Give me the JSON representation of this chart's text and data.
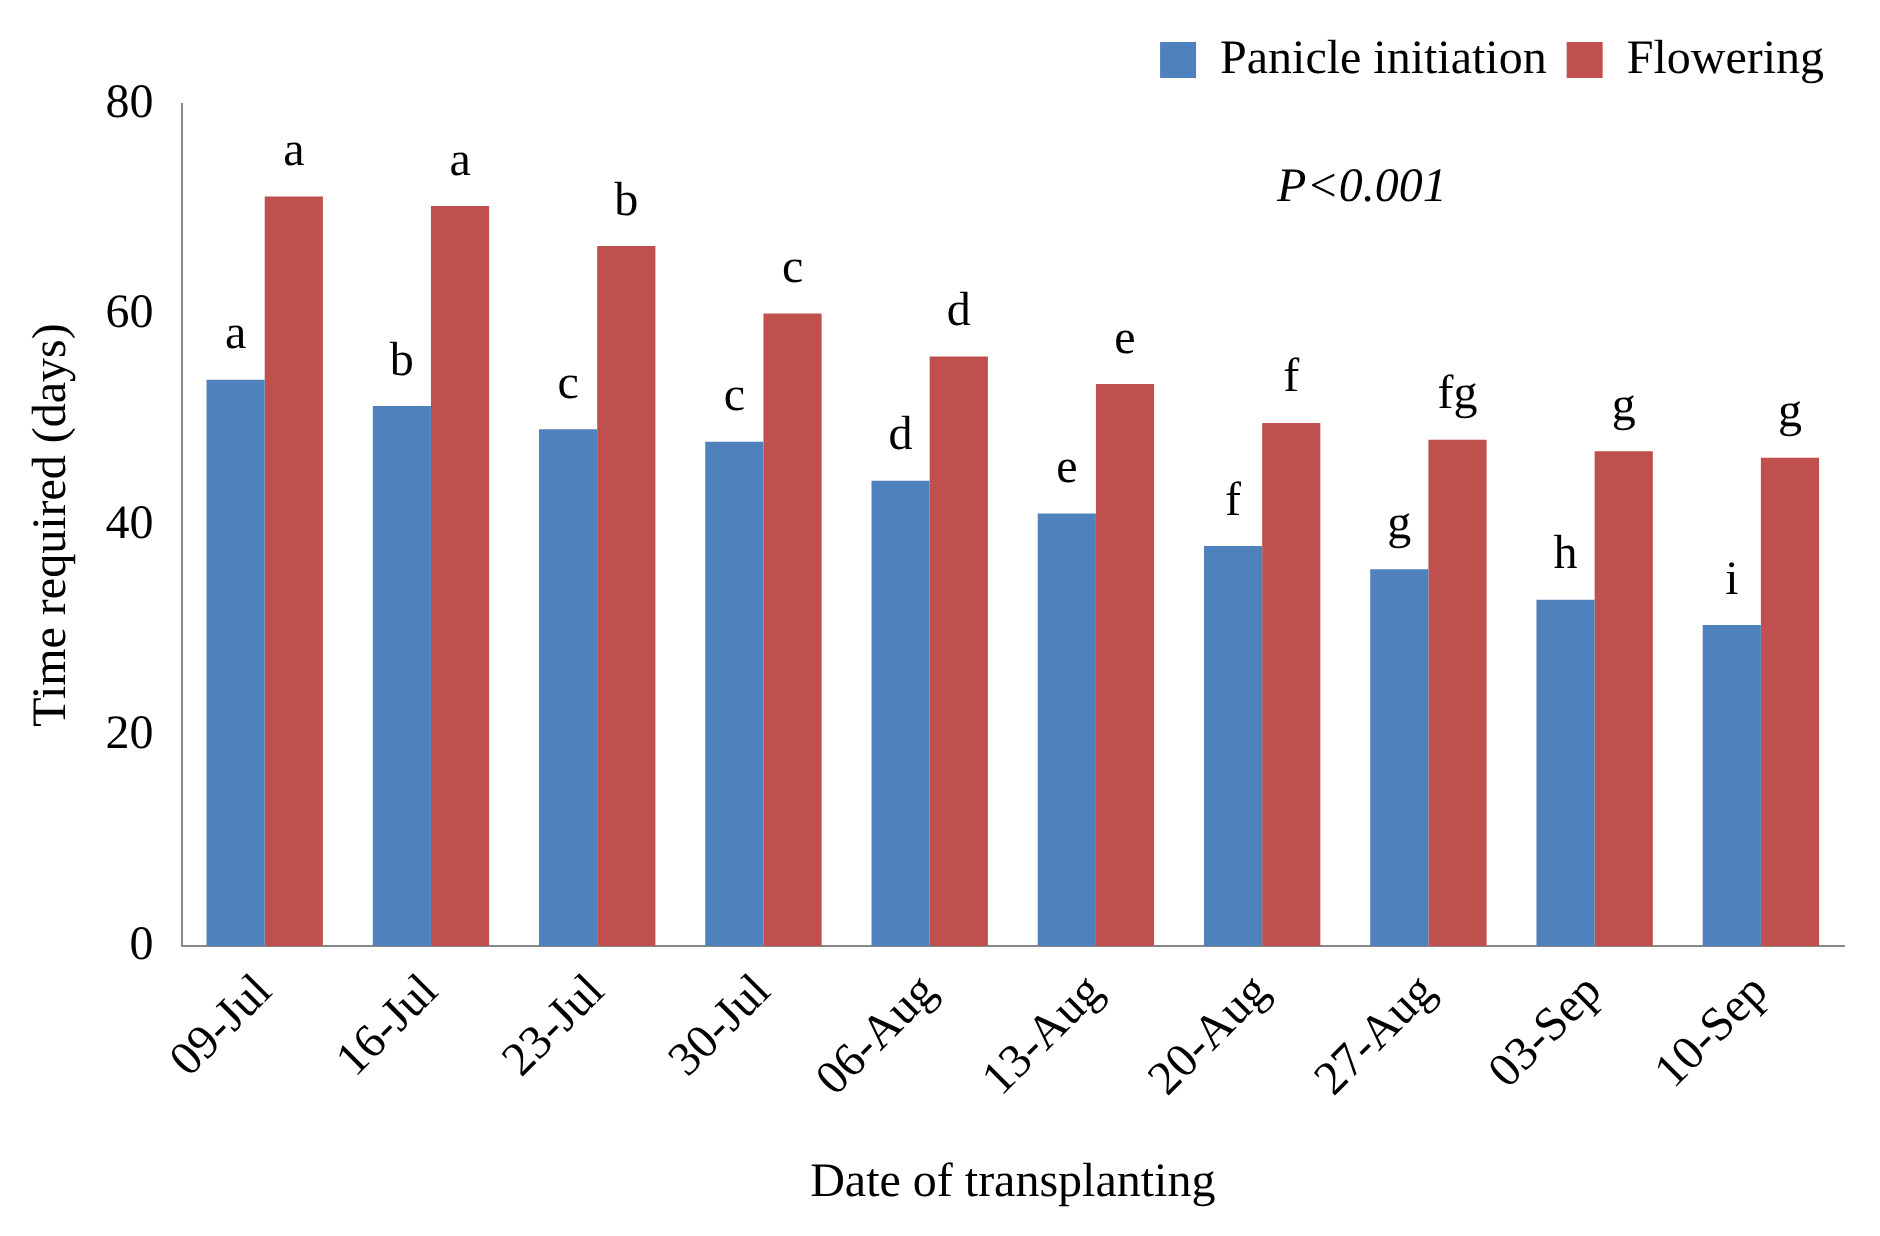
{
  "chart_data": {
    "type": "bar",
    "xlabel": "Date of transplanting",
    "ylabel": "Time required (days)",
    "categories": [
      "09-Jul",
      "16-Jul",
      "23-Jul",
      "30-Jul",
      "06-Aug",
      "13-Aug",
      "20-Aug",
      "27-Aug",
      "03-Sep",
      "10-Sep"
    ],
    "series": [
      {
        "name": "Panicle initiation",
        "color": "#4f81bd",
        "values": [
          53.8,
          51.3,
          49.1,
          47.9,
          44.2,
          41.1,
          38.0,
          35.8,
          32.9,
          30.5
        ]
      },
      {
        "name": "Flowering",
        "color": "#c0504d",
        "values": [
          71.2,
          70.3,
          66.5,
          60.1,
          56.0,
          53.4,
          49.7,
          48.1,
          47.0,
          46.4
        ]
      }
    ],
    "ylim": [
      0,
      80
    ],
    "yticks": [
      0,
      20,
      40,
      60,
      80
    ],
    "grid": false,
    "legend": "top right",
    "annotations": [
      "P<0.001",
      {
        "text": "a",
        "x": "09-Jul",
        "y": 53.8
      },
      {
        "text": "a",
        "x": "09-Jul",
        "y": 71.2
      },
      {
        "text": "b",
        "x": "16-Jul",
        "y": 51.3
      },
      {
        "text": "a",
        "x": "16-Jul",
        "y": 70.3
      },
      {
        "text": "c",
        "x": "23-Jul",
        "y": 49.1
      },
      {
        "text": "b",
        "x": "23-Jul",
        "y": 66.5
      },
      {
        "text": "c",
        "x": "30-Jul",
        "y": 47.9
      },
      {
        "text": "c",
        "x": "30-Jul",
        "y": 60.1
      },
      {
        "text": "d",
        "x": "06-Aug",
        "y": 44.2
      },
      {
        "text": "d",
        "x": "06-Aug",
        "y": 56.0
      },
      {
        "text": "e",
        "x": "13-Aug",
        "y": 41.1
      },
      {
        "text": "e",
        "x": "13-Aug",
        "y": 53.4
      },
      {
        "text": "f",
        "x": "20-Aug",
        "y": 38.0
      },
      {
        "text": "f",
        "x": "20-Aug",
        "y": 49.7
      },
      {
        "text": "g",
        "x": "27-Aug",
        "y": 35.8
      },
      {
        "text": "fg",
        "x": "27-Aug",
        "y": 48.1
      },
      {
        "text": "h",
        "x": "03-Sep",
        "y": 32.9
      },
      {
        "text": "g",
        "x": "03-Sep",
        "y": 47.0
      },
      {
        "text": "i",
        "x": "10-Sep",
        "y": 30.5
      },
      {
        "text": "g",
        "x": "10-Sep",
        "y": 46.4
      }
    ]
  }
}
